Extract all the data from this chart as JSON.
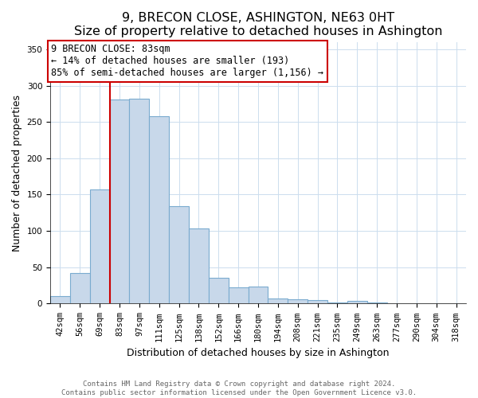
{
  "title": "9, BRECON CLOSE, ASHINGTON, NE63 0HT",
  "subtitle": "Size of property relative to detached houses in Ashington",
  "xlabel": "Distribution of detached houses by size in Ashington",
  "ylabel": "Number of detached properties",
  "bar_labels": [
    "42sqm",
    "56sqm",
    "69sqm",
    "83sqm",
    "97sqm",
    "111sqm",
    "125sqm",
    "138sqm",
    "152sqm",
    "166sqm",
    "180sqm",
    "194sqm",
    "208sqm",
    "221sqm",
    "235sqm",
    "249sqm",
    "263sqm",
    "277sqm",
    "290sqm",
    "304sqm",
    "318sqm"
  ],
  "bar_values": [
    10,
    42,
    157,
    281,
    282,
    258,
    134,
    103,
    35,
    22,
    23,
    7,
    6,
    5,
    2,
    4,
    2,
    1,
    1,
    1,
    1
  ],
  "bar_color": "#c8d8ea",
  "bar_edge_color": "#7aabcf",
  "vline_color": "#cc0000",
  "annotation_line1": "9 BRECON CLOSE: 83sqm",
  "annotation_line2": "← 14% of detached houses are smaller (193)",
  "annotation_line3": "85% of semi-detached houses are larger (1,156) →",
  "annotation_box_color": "#ffffff",
  "annotation_box_edge_color": "#cc0000",
  "ylim": [
    0,
    360
  ],
  "yticks": [
    0,
    50,
    100,
    150,
    200,
    250,
    300,
    350
  ],
  "footer_line1": "Contains HM Land Registry data © Crown copyright and database right 2024.",
  "footer_line2": "Contains public sector information licensed under the Open Government Licence v3.0.",
  "title_fontsize": 11.5,
  "subtitle_fontsize": 9.5,
  "axis_label_fontsize": 9,
  "tick_fontsize": 7.5,
  "annotation_fontsize": 8.5,
  "footer_fontsize": 6.5,
  "vline_bar_index": 3
}
